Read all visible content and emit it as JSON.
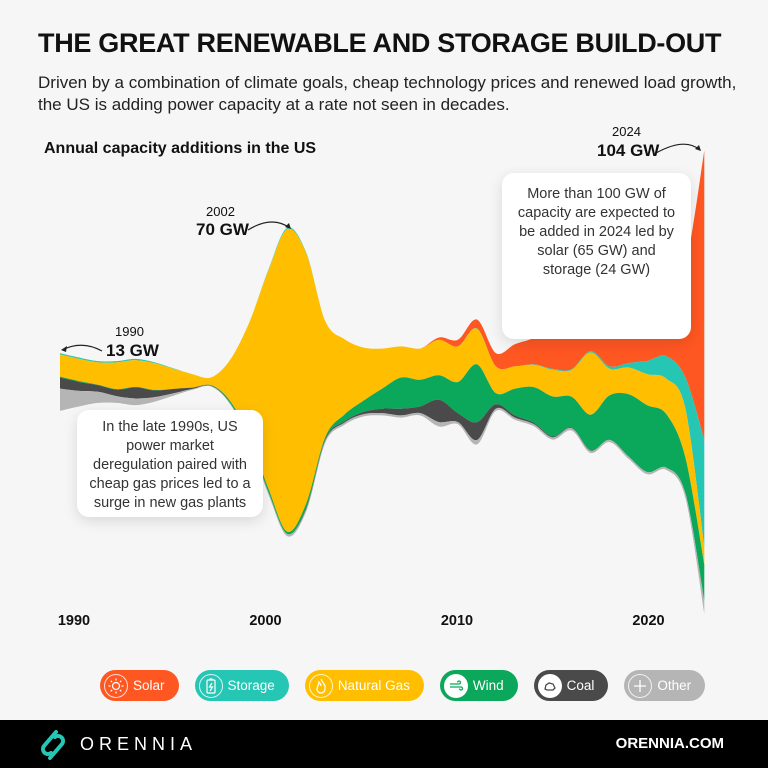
{
  "header": {
    "title": "THE GREAT RENEWABLE AND STORAGE BUILD-OUT",
    "subtitle": "Driven by a combination of climate goals, cheap technology prices and renewed load growth, the US is adding power capacity at a rate not seen in decades."
  },
  "chart_data": {
    "type": "area",
    "subtype": "streamgraph",
    "title": "Annual capacity additions in the US",
    "unit": "GW",
    "x": [
      1990,
      1991,
      1992,
      1993,
      1994,
      1995,
      1996,
      1997,
      1998,
      1999,
      2000,
      2001,
      2002,
      2003,
      2004,
      2005,
      2006,
      2007,
      2008,
      2009,
      2010,
      2011,
      2012,
      2013,
      2014,
      2015,
      2016,
      2017,
      2018,
      2019,
      2020,
      2021,
      2022,
      2023,
      2024
    ],
    "xticks": [
      "1990",
      "2000",
      "2010",
      "2020"
    ],
    "series": [
      {
        "name": "Solar",
        "color": "#ff5722",
        "values": [
          0,
          0,
          0,
          0,
          0,
          0,
          0,
          0,
          0,
          0,
          0,
          0,
          0,
          0,
          0,
          0,
          0,
          0,
          0,
          0,
          0.5,
          1.5,
          2,
          3,
          5,
          6,
          10,
          8,
          9,
          10,
          13,
          16,
          14,
          25,
          65
        ]
      },
      {
        "name": "Storage",
        "color": "#26c6b4",
        "values": [
          0.3,
          0.3,
          0.3,
          0.3,
          0.3,
          0.2,
          0.1,
          0,
          0,
          0,
          0,
          0.2,
          0.3,
          0.2,
          0,
          0,
          0,
          0,
          0,
          0,
          0,
          0,
          0.1,
          0,
          0,
          0.1,
          0.2,
          0.2,
          0.3,
          0.5,
          1,
          3,
          5,
          7,
          24
        ]
      },
      {
        "name": "Natural Gas",
        "color": "#ffbf00",
        "values": [
          5,
          5,
          5,
          6,
          6,
          6,
          4.5,
          3,
          1.8,
          9.5,
          26,
          49,
          68,
          56,
          26,
          17,
          12,
          9,
          7,
          7,
          8,
          8,
          8,
          6,
          5,
          5,
          6,
          6,
          14,
          6,
          6,
          7,
          8,
          11,
          4
        ]
      },
      {
        "name": "Wind",
        "color": "#0ba75a",
        "values": [
          0.2,
          0.2,
          0.1,
          0.1,
          0.1,
          0.1,
          0,
          0,
          0.1,
          0.5,
          0.5,
          0.8,
          0.5,
          1,
          0.5,
          1.5,
          2.5,
          4.5,
          7,
          6,
          5.5,
          7,
          13,
          2.5,
          6,
          8,
          9,
          7,
          8,
          10,
          14,
          15,
          12,
          8,
          8
        ]
      },
      {
        "name": "Coal",
        "color": "#4a4a4a",
        "values": [
          2.5,
          2,
          1.5,
          1.5,
          2.5,
          1.5,
          1,
          0.3,
          0.1,
          0,
          0,
          0,
          0,
          0.3,
          0.3,
          0.3,
          0.5,
          1,
          1.5,
          1.5,
          5,
          2,
          4,
          1,
          0.5,
          0.3,
          0.2,
          0.1,
          0.1,
          0,
          0,
          0,
          0,
          0,
          0
        ]
      },
      {
        "name": "Other",
        "color": "#b5b5b5",
        "values": [
          5,
          3.5,
          2.5,
          1.5,
          1.5,
          1,
          0.5,
          0.2,
          0.1,
          0.2,
          0.5,
          0.5,
          0.5,
          0.5,
          0.5,
          0.5,
          0.5,
          0.5,
          0.5,
          0.5,
          1,
          0.5,
          1,
          0.5,
          0.5,
          0.5,
          0.5,
          0.5,
          0.5,
          0.5,
          0.5,
          0.5,
          0.5,
          1,
          3
        ]
      }
    ],
    "annotations": [
      {
        "year": "1990",
        "value": "13 GW"
      },
      {
        "year": "2002",
        "value": "70 GW"
      },
      {
        "year": "2024",
        "value": "104 GW"
      }
    ],
    "callouts": [
      "In the late 1990s, US power market deregulation paired with cheap gas prices led to a surge in new gas plants",
      "More than 100 GW of capacity are expected to be added in 2024 led by solar (65 GW) and storage (24 GW)"
    ],
    "legend_placement": "bottom",
    "grid": false
  },
  "legend": [
    {
      "label": "Solar",
      "icon": "sun-icon",
      "color": "#ff5722"
    },
    {
      "label": "Storage",
      "icon": "battery-icon",
      "color": "#26c6b4"
    },
    {
      "label": "Natural Gas",
      "icon": "flame-icon",
      "color": "#ffbf00"
    },
    {
      "label": "Wind",
      "icon": "wind-icon",
      "color": "#0ba75a"
    },
    {
      "label": "Coal",
      "icon": "coal-icon",
      "color": "#4a4a4a"
    },
    {
      "label": "Other",
      "icon": "plus-icon",
      "color": "#b5b5b5"
    }
  ],
  "footer": {
    "brand": "ORENNIA",
    "website": "ORENNIA.COM",
    "accent": "#26c6b4"
  }
}
